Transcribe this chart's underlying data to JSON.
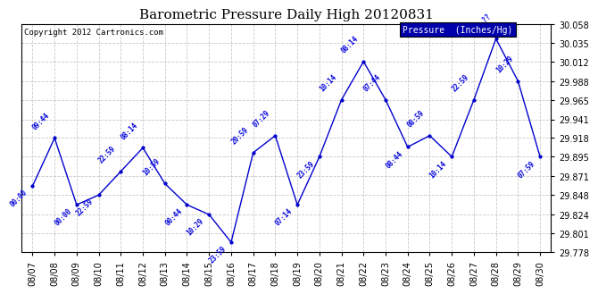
{
  "title": "Barometric Pressure Daily High 20120831",
  "copyright": "Copyright 2012 Cartronics.com",
  "legend_label": "Pressure  (Inches/Hg)",
  "ylim": [
    29.778,
    30.058
  ],
  "yticks": [
    29.778,
    29.801,
    29.824,
    29.848,
    29.871,
    29.895,
    29.918,
    29.941,
    29.965,
    29.988,
    30.012,
    30.035,
    30.058
  ],
  "line_color": "#0000CC",
  "background_color": "#ffffff",
  "grid_color": "#bbbbbb",
  "dates": [
    "08/07",
    "08/08",
    "08/09",
    "08/10",
    "08/11",
    "08/12",
    "08/13",
    "08/14",
    "08/15",
    "08/16",
    "08/17",
    "08/18",
    "08/19",
    "08/20",
    "08/21",
    "08/22",
    "08/23",
    "08/24",
    "08/25",
    "08/26",
    "08/27",
    "08/28",
    "08/29",
    "08/30"
  ],
  "values": [
    29.859,
    29.918,
    29.836,
    29.848,
    29.877,
    29.906,
    29.862,
    29.836,
    29.824,
    29.79,
    29.9,
    29.921,
    29.836,
    29.895,
    29.965,
    30.012,
    29.965,
    29.907,
    29.921,
    29.895,
    29.965,
    30.04,
    29.988,
    29.895
  ],
  "annotations": [
    "00:00",
    "09:44",
    "00:00",
    "22:59",
    "22:59",
    "08:14",
    "10:59",
    "00:44",
    "10:29",
    "23:59",
    "20:59",
    "07:29",
    "07:14",
    "23:59",
    "10:14",
    "08:14",
    "07:44",
    "08:44",
    "08:59",
    "10:14",
    "22:59",
    "09:??",
    "10:29",
    "07:59"
  ],
  "annot_up": [
    false,
    true,
    false,
    false,
    true,
    true,
    true,
    false,
    false,
    false,
    true,
    true,
    false,
    false,
    true,
    true,
    true,
    false,
    true,
    false,
    true,
    true,
    true,
    false
  ]
}
